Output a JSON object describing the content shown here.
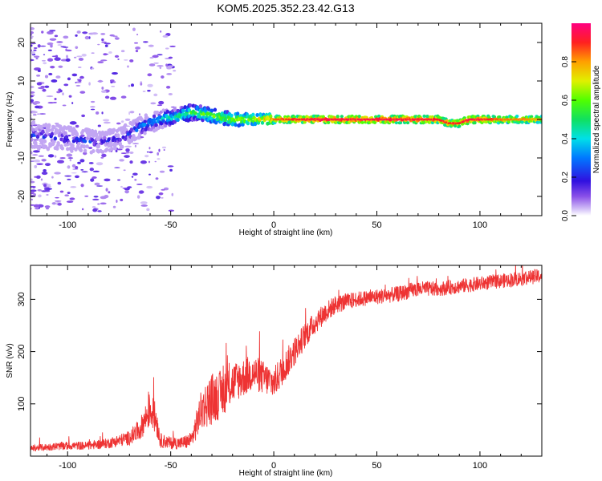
{
  "title": "KOM5.2025.352.23.42.G13",
  "chart_data": [
    {
      "type": "heatmap",
      "name": "spectrogram",
      "xlabel": "Height of straight line (km)",
      "ylabel": "Frequency (Hz)",
      "xlim": [
        -118,
        130
      ],
      "ylim": [
        -25,
        25
      ],
      "xticks": [
        -100,
        -50,
        0,
        50,
        100
      ],
      "yticks": [
        -20,
        -10,
        0,
        10,
        20
      ],
      "colorbar": {
        "label": "Normalized spectral amplitude",
        "range": [
          0,
          1
        ],
        "ticks": [
          0.0,
          0.2,
          0.4,
          0.6,
          0.8
        ]
      },
      "ridge": {
        "description": "dominant frequency vs height",
        "x": [
          -118,
          -100,
          -85,
          -75,
          -65,
          -55,
          -45,
          -40,
          -30,
          -20,
          -10,
          0,
          20,
          40,
          60,
          80,
          85,
          90,
          95,
          100,
          110,
          130
        ],
        "freq": [
          -4,
          -5,
          -6,
          -5,
          -2,
          0,
          1,
          2,
          1,
          0,
          0,
          0,
          0,
          0,
          0,
          0,
          -1,
          -1,
          0,
          0,
          0,
          0
        ],
        "amplitude": [
          0.2,
          0.2,
          0.2,
          0.2,
          0.3,
          0.4,
          0.5,
          0.55,
          0.6,
          0.65,
          0.7,
          0.85,
          0.95,
          0.95,
          0.95,
          0.92,
          0.9,
          0.9,
          0.95,
          0.95,
          0.85,
          0.8
        ]
      }
    },
    {
      "type": "line",
      "name": "snr",
      "xlabel": "Height of straight line (km)",
      "ylabel": "SNR (v/v)",
      "xlim": [
        -118,
        130
      ],
      "ylim": [
        0,
        365
      ],
      "xticks": [
        -100,
        -50,
        0,
        50,
        100
      ],
      "yticks": [
        100,
        200,
        300
      ],
      "series": [
        {
          "name": "SNR",
          "color": "#ee3333",
          "x": [
            -118,
            -100,
            -90,
            -80,
            -70,
            -65,
            -60,
            -57,
            -55,
            -50,
            -45,
            -40,
            -35,
            -30,
            -25,
            -20,
            -10,
            0,
            5,
            10,
            15,
            20,
            25,
            30,
            40,
            50,
            60,
            70,
            80,
            90,
            100,
            110,
            120,
            130
          ],
          "y": [
            15,
            20,
            20,
            25,
            35,
            50,
            90,
            70,
            30,
            25,
            25,
            30,
            90,
            110,
            120,
            140,
            160,
            140,
            170,
            200,
            230,
            255,
            275,
            290,
            300,
            305,
            310,
            320,
            320,
            325,
            330,
            335,
            340,
            345
          ],
          "noise": [
            6,
            8,
            8,
            10,
            14,
            20,
            35,
            30,
            14,
            12,
            12,
            16,
            40,
            50,
            45,
            40,
            35,
            30,
            30,
            28,
            25,
            22,
            20,
            18,
            15,
            15,
            15,
            15,
            14,
            14,
            14,
            14,
            14,
            14
          ]
        }
      ]
    }
  ]
}
